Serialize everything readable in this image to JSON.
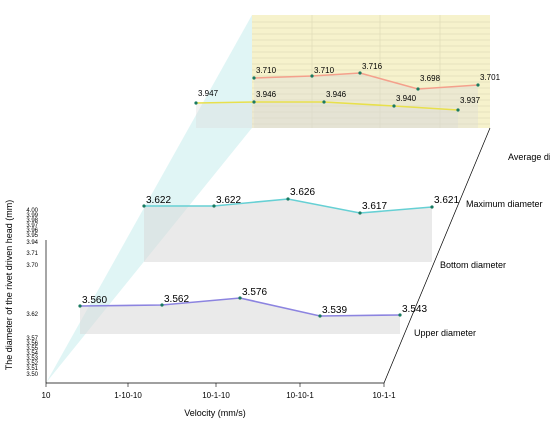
{
  "chart_data": {
    "type": "line",
    "subtype": "3d-wall",
    "xlabel": "Velocity (mm/s)",
    "ylabel": "The diameter of the rivet driven head (mm)",
    "x_ticks": [
      "10",
      "1-10-10",
      "10-1-10",
      "10-10-1",
      "10-1-1"
    ],
    "z_categories": [
      "Average diameter",
      "Maximum diameter",
      "Bottom diameter",
      "Upper diameter"
    ],
    "y_ticks_upper": [
      "4.00",
      "3.99",
      "3.98",
      "3.97",
      "3.96",
      "3.95",
      "3.94",
      "3.71",
      "3.70"
    ],
    "y_ticks_lower": [
      "3.62",
      "3.57",
      "3.56",
      "3.55",
      "3.54",
      "3.53",
      "3.52",
      "3.51",
      "3.50"
    ],
    "series": [
      {
        "name": "Average diameter",
        "color": "#f4a08c",
        "values": [
          3.71,
          3.71,
          3.716,
          3.698,
          3.701
        ],
        "labels": [
          "3.710",
          "3.710",
          "3.716",
          "3.698",
          "3.701"
        ]
      },
      {
        "name": "Maximum diameter",
        "color": "#e8e04c",
        "values": [
          3.947,
          3.946,
          3.946,
          3.94,
          3.937
        ],
        "labels": [
          "3.947",
          "3.946",
          "3.946",
          "3.940",
          "3.937"
        ]
      },
      {
        "name": "Bottom diameter",
        "color": "#66d0d4",
        "values": [
          3.622,
          3.622,
          3.626,
          3.617,
          3.621
        ],
        "labels": [
          "3.622",
          "3.622",
          "3.626",
          "3.617",
          "3.621"
        ]
      },
      {
        "name": "Upper diameter",
        "color": "#8c84e0",
        "values": [
          3.56,
          3.562,
          3.576,
          3.539,
          3.543
        ],
        "labels": [
          "3.560",
          "3.562",
          "3.576",
          "3.539",
          "3.543"
        ]
      }
    ],
    "colors": {
      "back_wall": "#f6f2cc",
      "side_wall": "#d6f2f2",
      "floor": "#d9d9d9"
    }
  }
}
